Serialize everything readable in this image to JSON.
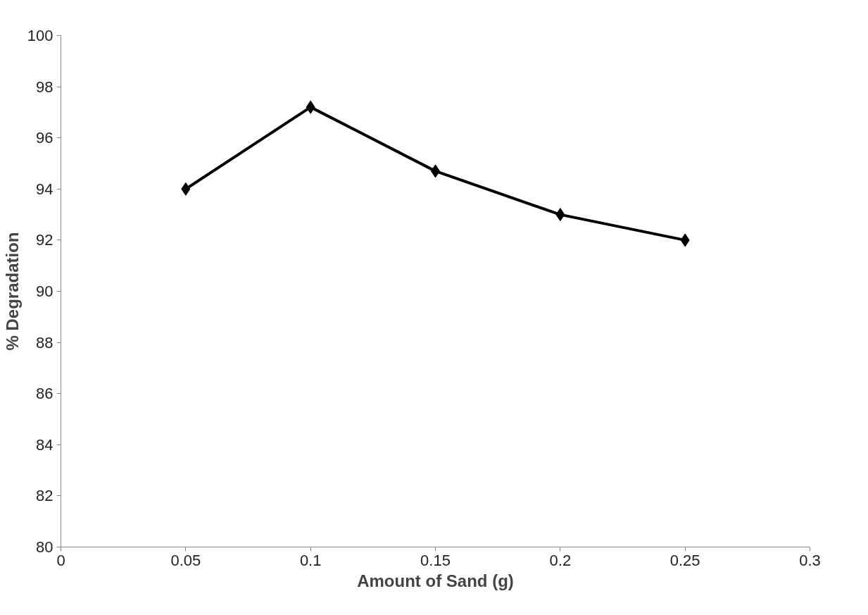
{
  "chart_data": {
    "type": "line",
    "xlabel": "Amount of Sand (g)",
    "ylabel": "% Degradation",
    "x": [
      0.05,
      0.1,
      0.15,
      0.2,
      0.25
    ],
    "series": [
      {
        "color": "#000000",
        "values": [
          94,
          97.2,
          94.7,
          93,
          92
        ]
      }
    ],
    "xlim": [
      0,
      0.3
    ],
    "xticks": [
      0,
      0.05,
      0.1,
      0.15,
      0.2,
      0.25,
      0.3
    ],
    "ylim": [
      80,
      100
    ],
    "yticks": [
      80,
      82,
      84,
      86,
      88,
      90,
      92,
      94,
      96,
      98,
      100
    ],
    "grid": false,
    "marker": "diamond",
    "line_style": "solid"
  }
}
